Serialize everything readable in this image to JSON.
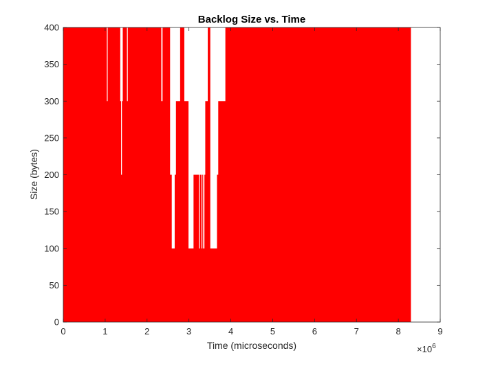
{
  "chart_data": {
    "type": "area",
    "title": "Backlog Size vs. Time",
    "xlabel": "Time (microseconds)",
    "ylabel": "Size (bytes)",
    "x_exponent_label": "×10",
    "x_exponent_power": "6",
    "xlim": [
      0,
      9000000
    ],
    "ylim": [
      0,
      400
    ],
    "x_ticks": [
      0,
      1,
      2,
      3,
      4,
      5,
      6,
      7,
      8,
      9
    ],
    "y_ticks": [
      0,
      50,
      100,
      150,
      200,
      250,
      300,
      350,
      400
    ],
    "x_tick_scale": 1000000,
    "grid": false,
    "fill_color": "#ff0000",
    "series": [
      {
        "x": [
          0,
          1040000,
          1040000,
          1060000,
          1060000,
          1360000,
          1360000,
          1380000,
          1380000,
          1400000,
          1400000,
          1420000,
          1420000,
          1520000,
          1520000,
          1540000,
          1540000,
          1700000,
          1700000,
          2340000,
          2340000,
          2370000,
          2370000,
          2550000,
          2550000,
          2590000,
          2590000,
          2660000,
          2660000,
          2690000,
          2690000,
          2790000,
          2790000,
          2890000,
          2890000,
          2990000,
          2990000,
          3050000,
          3050000,
          3110000,
          3110000,
          3240000,
          3240000,
          3260000,
          3260000,
          3300000,
          3300000,
          3320000,
          3320000,
          3340000,
          3340000,
          3370000,
          3370000,
          3390000,
          3390000,
          3450000,
          3450000,
          3510000,
          3510000,
          3670000,
          3670000,
          3700000,
          3700000,
          3870000,
          3870000,
          3920000,
          3920000,
          3990000,
          3990000,
          8300000
        ],
        "y": [
          400,
          400,
          300,
          300,
          400,
          400,
          300,
          300,
          200,
          200,
          300,
          300,
          400,
          400,
          300,
          300,
          400,
          400,
          400,
          400,
          300,
          300,
          400,
          400,
          200,
          200,
          100,
          100,
          200,
          200,
          300,
          300,
          400,
          400,
          300,
          300,
          100,
          100,
          100,
          100,
          200,
          200,
          100,
          100,
          200,
          200,
          100,
          100,
          200,
          200,
          100,
          100,
          200,
          200,
          300,
          300,
          400,
          400,
          100,
          100,
          200,
          200,
          300,
          300,
          400,
          400,
          400,
          400,
          400,
          400
        ]
      }
    ]
  }
}
